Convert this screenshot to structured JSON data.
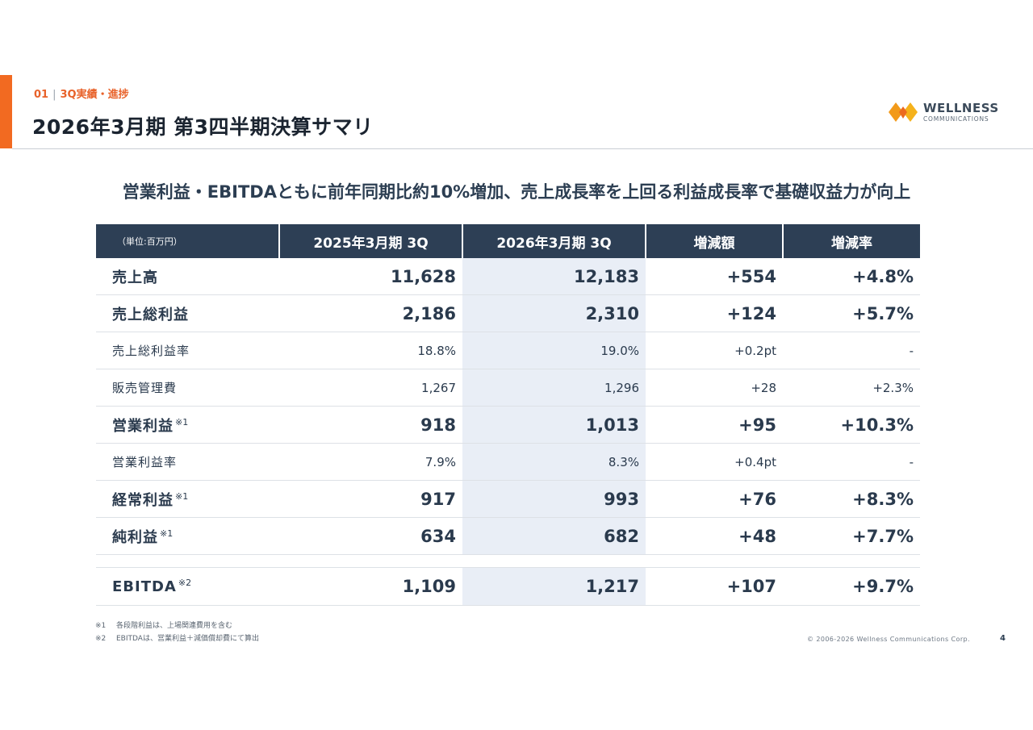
{
  "header": {
    "section_number": "01",
    "section_name": "3Q実績・進捗",
    "title": "2026年3月期 第3四半期決算サマリ"
  },
  "logo": {
    "name": "WELLNESS",
    "sub": "COMMUNICATIONS",
    "icon": "orange-diamond-logo-icon"
  },
  "headline": "営業利益・EBITDAともに前年同期比約10%増加、売上成長率を上回る利益成長率で基礎収益力が向上",
  "table": {
    "unit_label": "（単位:百万円）",
    "columns": [
      "2025年3月期 3Q",
      "2026年3月期 3Q",
      "増減額",
      "増減率"
    ],
    "rows": [
      {
        "label": "売上高",
        "note": "",
        "values": [
          "11,628",
          "12,183",
          "+554",
          "+4.8%"
        ]
      },
      {
        "label": "売上総利益",
        "note": "",
        "values": [
          "2,186",
          "2,310",
          "+124",
          "+5.7%"
        ]
      },
      {
        "label": "売上総利益率",
        "note": "",
        "values": [
          "18.8%",
          "19.0%",
          "+0.2pt",
          "-"
        ]
      },
      {
        "label": "販売管理費",
        "note": "",
        "values": [
          "1,267",
          "1,296",
          "+28",
          "+2.3%"
        ]
      },
      {
        "label": "営業利益",
        "note": "※1",
        "values": [
          "918",
          "1,013",
          "+95",
          "+10.3%"
        ]
      },
      {
        "label": "営業利益率",
        "note": "",
        "values": [
          "7.9%",
          "8.3%",
          "+0.4pt",
          "-"
        ]
      },
      {
        "label": "経常利益",
        "note": "※1",
        "values": [
          "917",
          "993",
          "+76",
          "+8.3%"
        ]
      },
      {
        "label": "純利益",
        "note": "※1",
        "values": [
          "634",
          "682",
          "+48",
          "+7.7%"
        ]
      },
      {
        "label": "EBITDA",
        "note": "※2",
        "values": [
          "1,109",
          "1,217",
          "+107",
          "+9.7%"
        ]
      }
    ]
  },
  "footnotes": [
    {
      "mark": "※1",
      "text": "各段階利益は、上場関連費用を含む"
    },
    {
      "mark": "※2",
      "text": "EBITDAは、営業利益＋減価償却費にて算出"
    }
  ],
  "footer": {
    "copyright": "© 2006-2026 Wellness Communications Corp.",
    "page_number": "4"
  },
  "colors": {
    "accent": "#f26a21",
    "header_bg": "#2d3f55",
    "highlight_column": "#e9eef6",
    "text": "#2a3a4d"
  }
}
